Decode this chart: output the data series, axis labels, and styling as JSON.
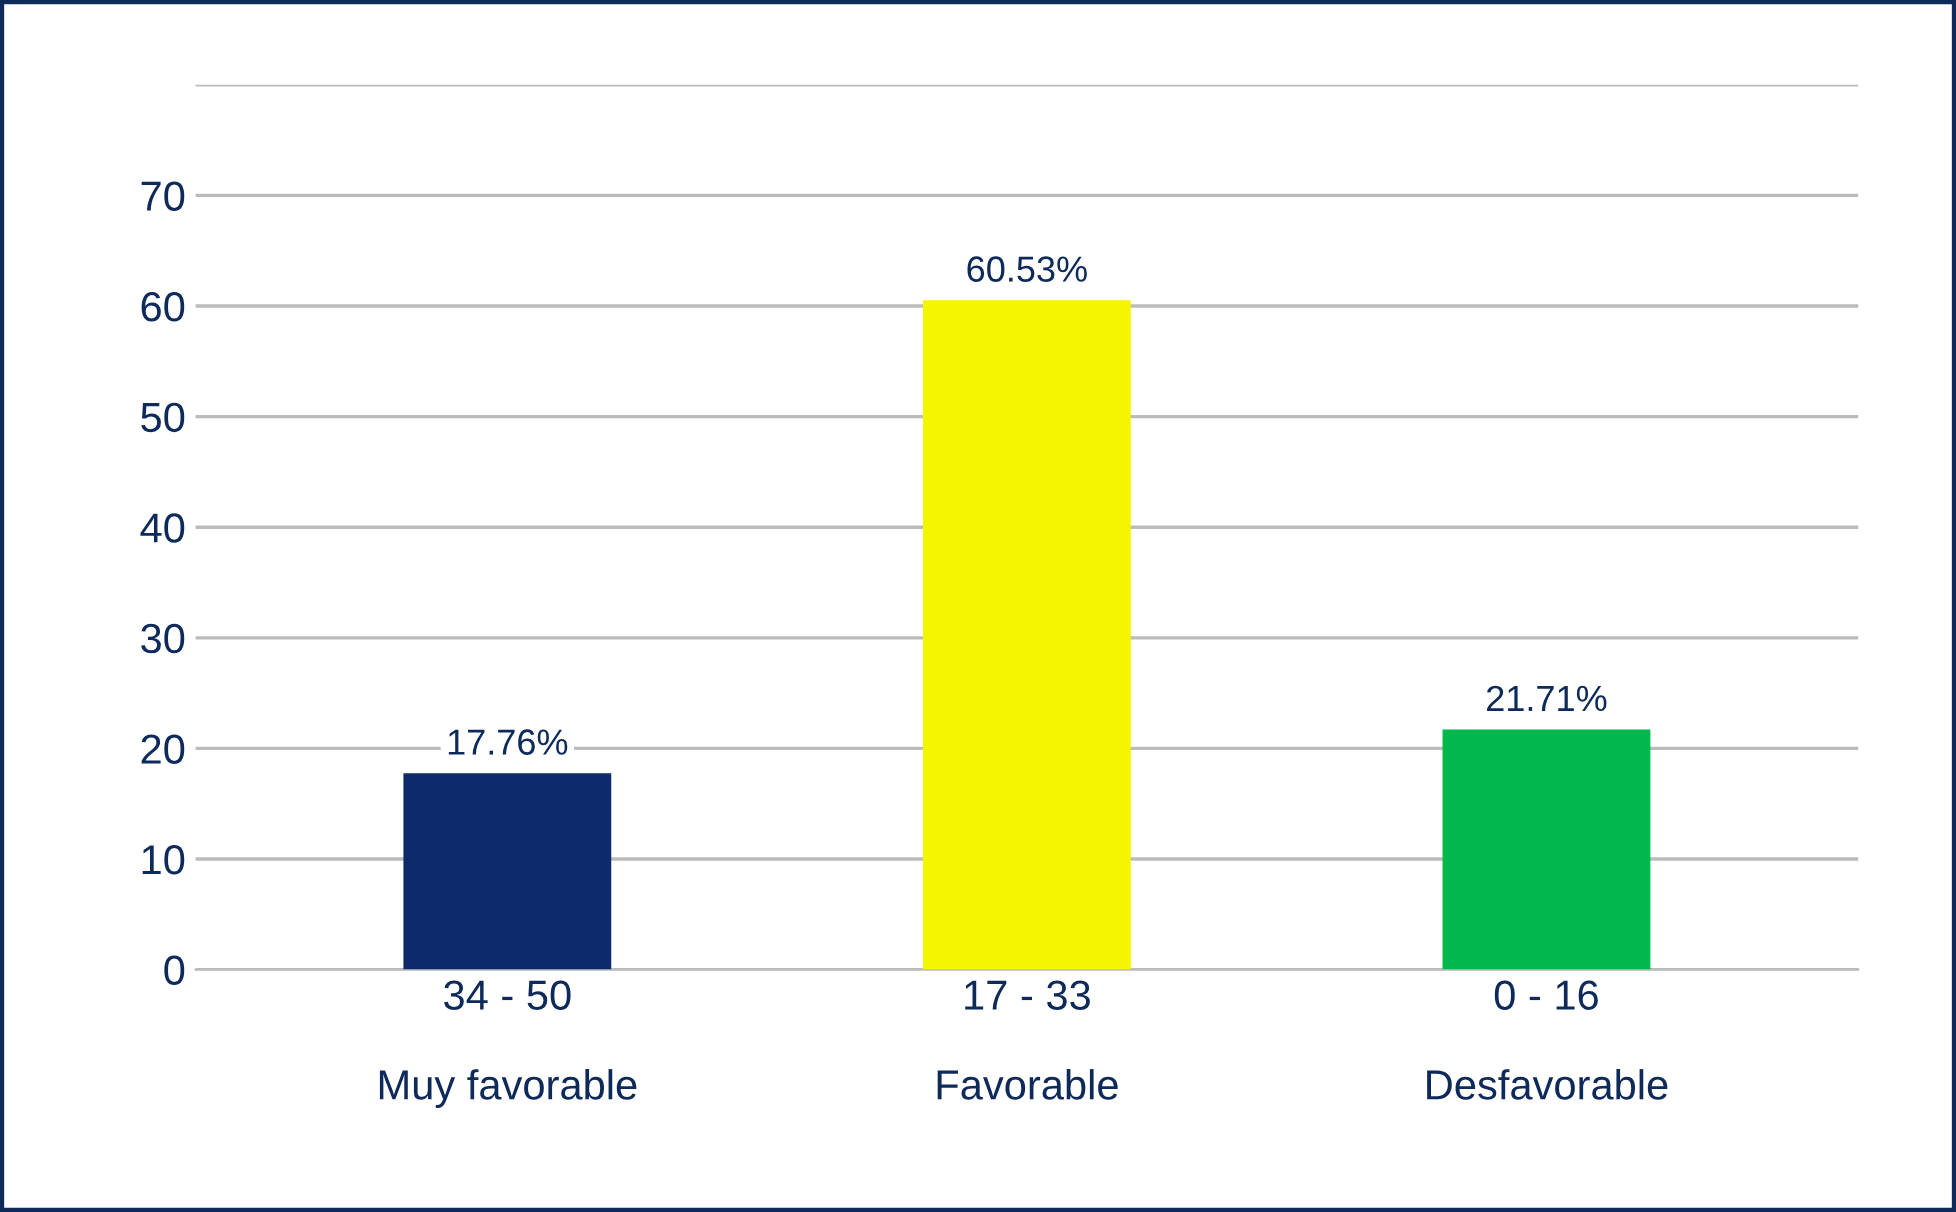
{
  "chart_data": {
    "type": "bar",
    "categories": [
      "34 - 50\n\nMuy favorable",
      "17 - 33\n\nFavorable",
      "0 - 16\n\nDesfavorable"
    ],
    "values": [
      17.76,
      60.53,
      21.71
    ],
    "colors": [
      "#0d2a6b",
      "#f5f500",
      "#00b84c"
    ],
    "value_labels": [
      "17.76%",
      "60.53%",
      "21.71%"
    ],
    "ylim": [
      0,
      80
    ],
    "yticks": [
      0,
      10,
      20,
      30,
      40,
      50,
      60,
      70,
      {
        "value": 80,
        "label": null
      }
    ],
    "grid": "y"
  }
}
